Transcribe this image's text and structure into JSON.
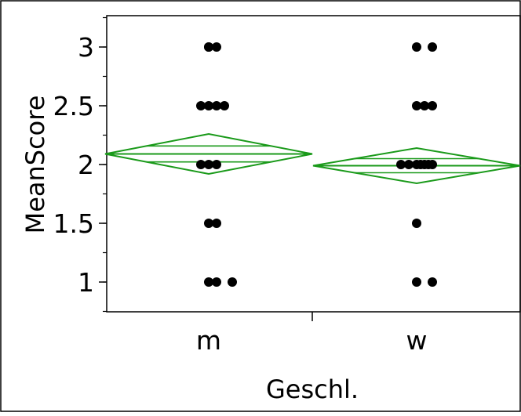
{
  "chart_data": {
    "type": "scatter",
    "title": "",
    "xlabel": "Geschl.",
    "ylabel": "MeanScore",
    "categories": [
      "m",
      "w"
    ],
    "ylim": [
      0.75,
      3.25
    ],
    "y_ticks": [
      1,
      1.5,
      2,
      2.5,
      3
    ],
    "y_tick_labels": [
      "1",
      "1.5",
      "2",
      "2.5",
      "3"
    ],
    "grid": false,
    "diamond_color": "#1a9a1a",
    "point_color": "#000000",
    "groups": [
      {
        "category": "m",
        "mean": 2.09,
        "ci_lower": 1.92,
        "ci_upper": 2.26,
        "points": [
          {
            "y": 3.0,
            "offset": 0
          },
          {
            "y": 3.0,
            "offset": 0
          },
          {
            "y": 3.0,
            "offset": 1
          },
          {
            "y": 2.5,
            "offset": -1
          },
          {
            "y": 2.5,
            "offset": 0
          },
          {
            "y": 2.5,
            "offset": 1
          },
          {
            "y": 2.5,
            "offset": 2
          },
          {
            "y": 2.0,
            "offset": -1
          },
          {
            "y": 2.0,
            "offset": 0
          },
          {
            "y": 2.0,
            "offset": 1
          },
          {
            "y": 1.5,
            "offset": 0
          },
          {
            "y": 1.5,
            "offset": 1
          },
          {
            "y": 1.0,
            "offset": 0
          },
          {
            "y": 1.0,
            "offset": 1
          },
          {
            "y": 1.0,
            "offset": 3
          }
        ]
      },
      {
        "category": "w",
        "mean": 1.99,
        "ci_lower": 1.84,
        "ci_upper": 2.14,
        "points": [
          {
            "y": 3.0,
            "offset": 0
          },
          {
            "y": 3.0,
            "offset": 2
          },
          {
            "y": 2.5,
            "offset": 0
          },
          {
            "y": 2.5,
            "offset": 1
          },
          {
            "y": 2.5,
            "offset": 2
          },
          {
            "y": 2.0,
            "offset": -2
          },
          {
            "y": 2.0,
            "offset": -1
          },
          {
            "y": 2.0,
            "offset": 0
          },
          {
            "y": 2.0,
            "offset": 0.5
          },
          {
            "y": 2.0,
            "offset": 1
          },
          {
            "y": 2.0,
            "offset": 1.5
          },
          {
            "y": 2.0,
            "offset": 2
          },
          {
            "y": 1.5,
            "offset": 0
          },
          {
            "y": 1.0,
            "offset": 0
          },
          {
            "y": 1.0,
            "offset": 2
          }
        ]
      }
    ]
  }
}
